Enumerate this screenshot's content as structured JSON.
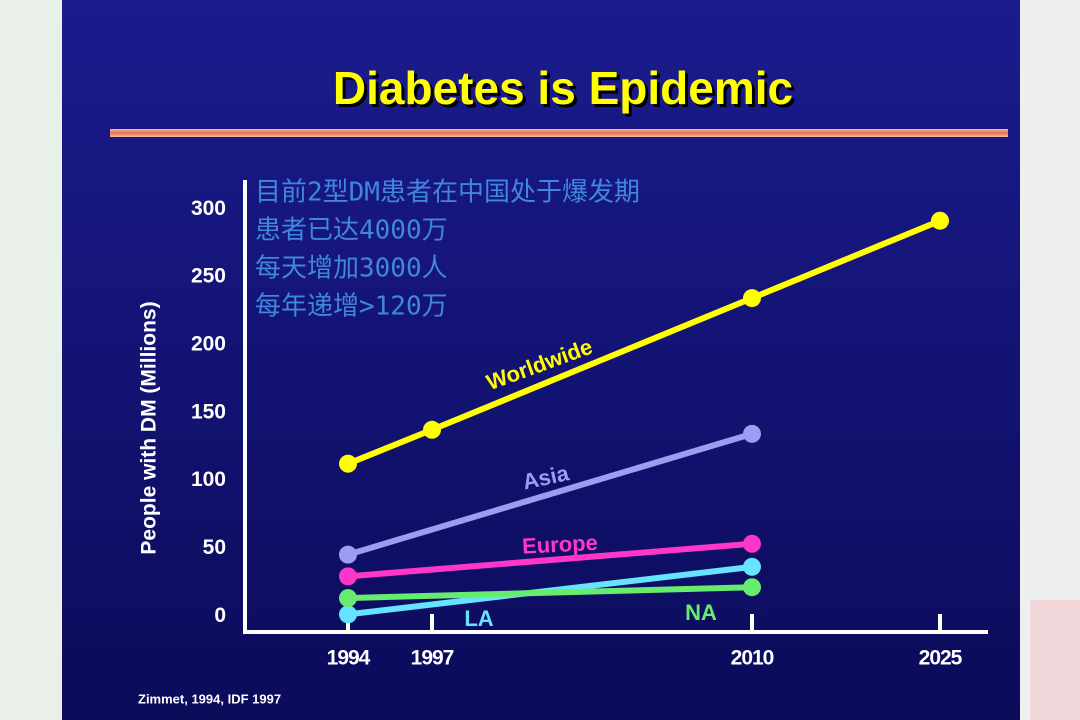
{
  "chart_data": {
    "type": "line",
    "title": "Diabetes is Epidemic",
    "ylabel": "People with DM (Millions)",
    "annotations": [
      "目前2型DM患者在中国处于爆发期",
      "患者已达4000万",
      "每天增加3000人",
      "每年递增>120万"
    ],
    "source": "Zimmet, 1994, IDF 1997",
    "categories": [
      "1994",
      "1997",
      "2010",
      "2025"
    ],
    "ylim": [
      -10,
      323
    ],
    "yticks": [
      0,
      50,
      100,
      150,
      200,
      250,
      300
    ],
    "grid": false,
    "series": [
      {
        "name": "Worldwide",
        "color": "#ffff00",
        "x": [
          "1994",
          "1997",
          "2010",
          "2025"
        ],
        "values": [
          114,
          139,
          236,
          293
        ]
      },
      {
        "name": "Asia",
        "color": "#9c9cf0",
        "x": [
          "1994",
          "2010"
        ],
        "values": [
          47,
          136
        ]
      },
      {
        "name": "Europe",
        "color": "#ff36c8",
        "x": [
          "1994",
          "2010"
        ],
        "values": [
          31,
          55
        ]
      },
      {
        "name": "LA",
        "color": "#66e4ff",
        "x": [
          "1994",
          "2010"
        ],
        "values": [
          3,
          38
        ]
      },
      {
        "name": "NA",
        "color": "#66ec6e",
        "x": [
          "1994",
          "2010"
        ],
        "values": [
          15,
          23
        ]
      }
    ]
  }
}
